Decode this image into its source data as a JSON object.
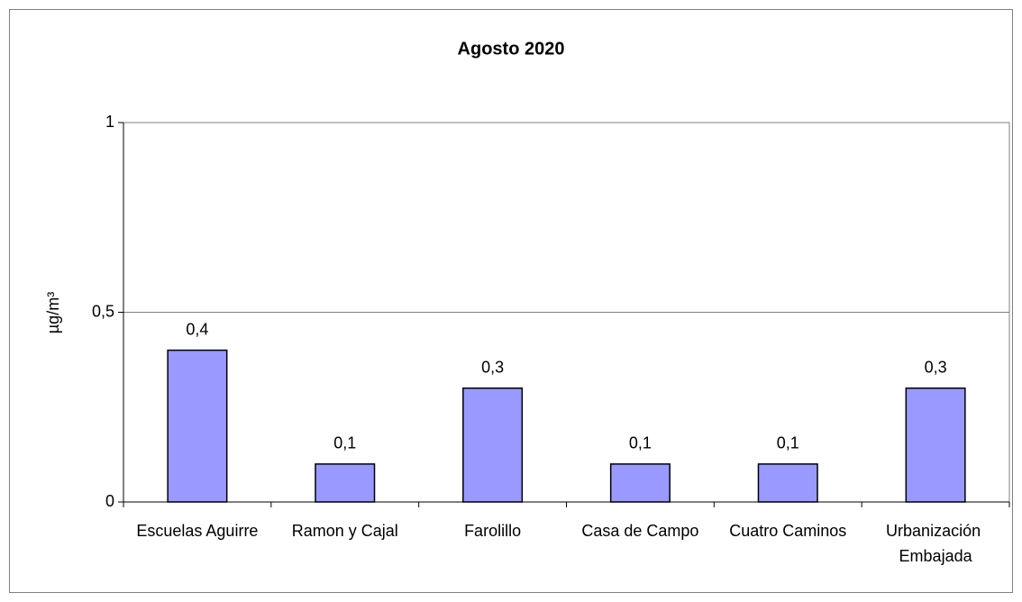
{
  "chart_data": {
    "type": "bar",
    "title": "Agosto 2020",
    "y_label": "µg/m³",
    "categories": [
      "Escuelas Aguirre",
      "Ramon y Cajal",
      "Farolillo",
      "Casa de Campo",
      "Cuatro Caminos",
      "Urbanización Embajada"
    ],
    "values": [
      0.4,
      0.1,
      0.3,
      0.1,
      0.1,
      0.3
    ],
    "value_labels": [
      "0,4",
      "0,1",
      "0,3",
      "0,1",
      "0,1",
      "0,3"
    ],
    "color": "#9999ff",
    "ylim": [
      0,
      1
    ],
    "yticks": [
      0,
      {
        "value": 0.5,
        "label": "0,5"
      },
      1
    ],
    "grid": true
  }
}
